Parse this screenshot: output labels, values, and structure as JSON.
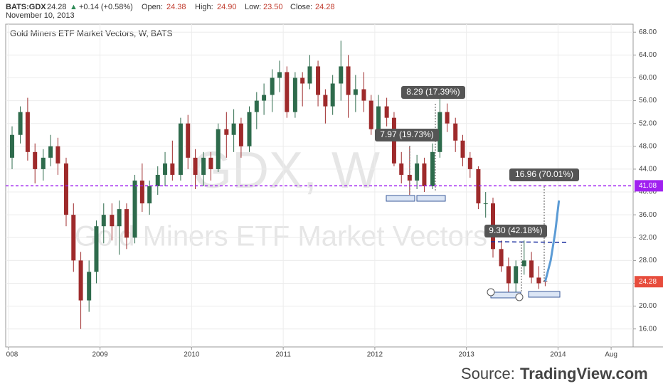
{
  "header": {
    "symbol": "BATS:GDX",
    "price": "24.28",
    "arrow": "▲",
    "change": "+0.14 (+0.58%)",
    "fields": [
      {
        "label": "Open:",
        "value": "24.38"
      },
      {
        "label": "High:",
        "value": "24.90"
      },
      {
        "label": "Low:",
        "value": "23.50"
      },
      {
        "label": "Close:",
        "value": "24.28"
      }
    ],
    "date": "November 10, 2013"
  },
  "source": {
    "prefix": "Source:",
    "name": "TradingView.com"
  },
  "chart_data": {
    "type": "candlestick",
    "title": "Gold Miners ETF Market Vectors, W, BATS",
    "watermark": [
      "GDX, W",
      "Gold Miners ETF Market Vectors"
    ],
    "x": [
      2008.04,
      2008.13,
      2008.21,
      2008.29,
      2008.38,
      2008.46,
      2008.54,
      2008.63,
      2008.71,
      2008.79,
      2008.88,
      2008.96,
      2009.04,
      2009.13,
      2009.21,
      2009.29,
      2009.38,
      2009.46,
      2009.54,
      2009.63,
      2009.71,
      2009.79,
      2009.88,
      2009.96,
      2010.04,
      2010.13,
      2010.21,
      2010.29,
      2010.38,
      2010.46,
      2010.54,
      2010.63,
      2010.71,
      2010.79,
      2010.88,
      2010.96,
      2011.04,
      2011.13,
      2011.21,
      2011.29,
      2011.38,
      2011.46,
      2011.54,
      2011.63,
      2011.71,
      2011.79,
      2011.88,
      2011.96,
      2012.04,
      2012.13,
      2012.21,
      2012.29,
      2012.38,
      2012.46,
      2012.54,
      2012.63,
      2012.71,
      2012.79,
      2012.88,
      2012.96,
      2013.04,
      2013.13,
      2013.21,
      2013.29,
      2013.38,
      2013.46,
      2013.54,
      2013.63,
      2013.71,
      2013.79,
      2013.86
    ],
    "open": [
      46,
      50,
      54,
      47,
      44,
      46,
      48,
      45,
      36,
      28,
      21,
      26,
      34,
      36,
      34,
      37,
      32,
      42,
      38,
      41,
      43,
      45,
      43,
      52,
      46,
      43,
      46,
      44,
      51,
      50,
      52,
      48,
      54,
      56,
      57,
      60,
      61,
      54,
      60,
      59,
      62,
      57,
      55,
      59,
      62,
      57,
      58,
      56,
      51,
      55,
      53,
      45,
      43,
      42,
      45,
      41,
      47,
      54,
      52,
      49,
      46,
      44,
      38,
      38,
      30,
      27,
      24,
      27,
      28,
      25,
      24.38
    ],
    "high": [
      51.5,
      55,
      56.5,
      48.5,
      47.5,
      50,
      49.5,
      46,
      38,
      29.5,
      28,
      35,
      38,
      38,
      38.5,
      38,
      43,
      45,
      42,
      44.5,
      47,
      49,
      53,
      53.5,
      47.5,
      47,
      47,
      52,
      54,
      54.5,
      53,
      55,
      57.5,
      59,
      61.5,
      63,
      62,
      61,
      61,
      64,
      63,
      58,
      60.5,
      66.5,
      64,
      60.5,
      61,
      57,
      57,
      56.5,
      54,
      47,
      48,
      46.5,
      46,
      48.5,
      56.5,
      55.5,
      53,
      50,
      47,
      44.5,
      40,
      39,
      31.5,
      28.5,
      28,
      31.5,
      29.5,
      27,
      24.9
    ],
    "low": [
      44,
      48.5,
      45.5,
      41.5,
      42,
      44.5,
      43,
      34,
      26,
      16,
      19,
      24,
      31,
      31.5,
      29,
      30,
      31,
      36.5,
      36,
      39.5,
      41,
      42,
      42,
      44,
      40.5,
      41,
      42,
      43.5,
      46,
      47,
      46,
      47,
      51,
      53.5,
      54,
      57.5,
      53,
      53,
      55,
      58,
      55,
      52,
      53.5,
      56,
      53,
      54,
      54,
      50,
      50,
      51.5,
      44.5,
      41.5,
      39.5,
      40.5,
      40,
      40.5,
      46,
      50.5,
      47,
      44.5,
      42.5,
      37,
      35.5,
      28.5,
      26,
      22.2,
      22.5,
      25.5,
      24,
      23,
      23.5
    ],
    "close": [
      50,
      54,
      47,
      44,
      46,
      48,
      45,
      36,
      28,
      21,
      26,
      34,
      36,
      34,
      37,
      32,
      42,
      38,
      41,
      43,
      45,
      43,
      52,
      46,
      43,
      46,
      44,
      51,
      50,
      52,
      48,
      54,
      56,
      57,
      60,
      61,
      54,
      60,
      59,
      62,
      57,
      55,
      59,
      62,
      57,
      58,
      56,
      51,
      55,
      53,
      45,
      43,
      42,
      45,
      41,
      47,
      54,
      52,
      49,
      46,
      44,
      38,
      38,
      30,
      27,
      24,
      27,
      28,
      25,
      24,
      24.28
    ],
    "up_color": "#2e6b4c",
    "down_color": "#9e2a2b",
    "projection": {
      "color": "#5b9bd5",
      "x": [
        2013.86,
        2013.92,
        2013.97,
        2014.01
      ],
      "values": [
        24.28,
        28,
        33,
        38.5
      ]
    },
    "hlines": [
      {
        "value": 41.08,
        "label": "41.08",
        "color": "#a020f0"
      }
    ],
    "annotations": [
      "8.29 (17.39%)",
      "7.97 (19.73%)",
      "16.96 (70.01%)",
      "9.30 (42.18%)"
    ],
    "xlim": [
      2007.97,
      2014.82
    ],
    "xticks": [
      {
        "value": 2008,
        "label": "008"
      },
      2009,
      2010,
      2011,
      2012,
      2013,
      2014,
      {
        "value": 2014.58,
        "label": "Aug"
      }
    ],
    "ylim": [
      12.85,
      69.4
    ],
    "yticks": [
      {
        "value": 16,
        "label": "16.00"
      },
      {
        "value": 20,
        "label": "20.00"
      },
      {
        "value": 24,
        "label": "24.00"
      },
      {
        "value": 28,
        "label": "28.00"
      },
      {
        "value": 32,
        "label": "32.00"
      },
      {
        "value": 36,
        "label": "36.00"
      },
      {
        "value": 40,
        "label": "40.00"
      },
      {
        "value": 44,
        "label": "44.00"
      },
      {
        "value": 48,
        "label": "48.00"
      },
      {
        "value": 52,
        "label": "52.00"
      },
      {
        "value": 56,
        "label": "56.00"
      },
      {
        "value": 60,
        "label": "60.00"
      },
      {
        "value": 64,
        "label": "64.00"
      },
      {
        "value": 68,
        "label": "68.00"
      }
    ],
    "grid": true
  }
}
